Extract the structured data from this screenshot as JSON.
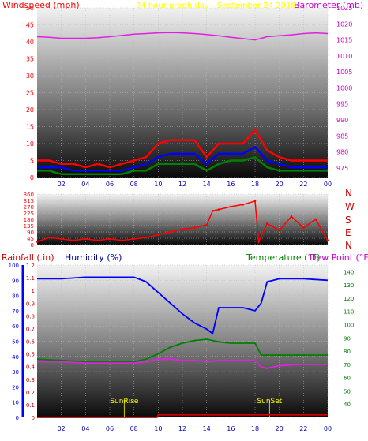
{
  "header": {
    "left_title": "Windspeed (mph)",
    "center_title": "24 hour graph day - September 24 2018",
    "right_title": "Barometer (mb)"
  },
  "wind_dir_labels": [
    "N",
    "W",
    "S",
    "E",
    "N"
  ],
  "bottom_header": {
    "rain": "Rainfall (.in)",
    "humidity": "Humidity (%)",
    "temperature": "Temperature (°F)",
    "dewpoint": "Dew Point (°F)"
  },
  "colors": {
    "red": "#ff0000",
    "blue": "#0000ff",
    "green": "#008000",
    "magenta": "#dd22dd",
    "yellow": "#ffff00",
    "olive": "#999900",
    "navy": "#000099",
    "red_dark": "#cc0000"
  },
  "chart_data": [
    {
      "type": "line",
      "series": [
        {
          "name": "Windspeed (mph)",
          "axis": "left",
          "color": "#ff0000",
          "x": [
            0,
            1,
            2,
            3,
            4,
            5,
            6,
            7,
            8,
            9,
            10,
            11,
            12,
            13,
            14,
            15,
            16,
            17,
            18,
            19,
            20,
            21,
            22,
            23,
            24
          ],
          "values": [
            5,
            5,
            4,
            4,
            3,
            4,
            3,
            4,
            5,
            6,
            10,
            11,
            11,
            11,
            6,
            10,
            10,
            10,
            14,
            8,
            6,
            5,
            5,
            5,
            5
          ]
        },
        {
          "name": "Wind gust (mph)",
          "axis": "left",
          "color": "#0000ff",
          "x": [
            0,
            1,
            2,
            3,
            4,
            5,
            6,
            7,
            8,
            9,
            10,
            11,
            12,
            13,
            14,
            15,
            16,
            17,
            18,
            19,
            20,
            21,
            22,
            23,
            24
          ],
          "values": [
            3,
            3,
            3,
            2,
            2,
            2,
            2,
            2,
            3,
            4,
            6,
            7,
            7,
            7,
            4,
            7,
            7,
            7,
            9,
            5,
            4,
            3,
            3,
            3,
            3
          ]
        },
        {
          "name": "Average wind (mph)",
          "axis": "left",
          "color": "#008000",
          "x": [
            0,
            1,
            2,
            3,
            4,
            5,
            6,
            7,
            8,
            9,
            10,
            11,
            12,
            13,
            14,
            15,
            16,
            17,
            18,
            19,
            20,
            21,
            22,
            23,
            24
          ],
          "values": [
            2,
            2,
            1,
            1,
            1,
            1,
            1,
            1,
            2,
            2,
            4,
            4,
            4,
            4,
            2,
            4,
            5,
            5,
            6,
            3,
            2,
            2,
            2,
            2,
            2
          ]
        },
        {
          "name": "Barometer (mb)",
          "axis": "right",
          "color": "#dd22dd",
          "x": [
            0,
            1,
            2,
            3,
            4,
            5,
            6,
            7,
            8,
            9,
            10,
            11,
            12,
            13,
            14,
            15,
            16,
            17,
            18,
            19,
            20,
            21,
            22,
            23,
            24
          ],
          "values": [
            1016,
            1015.8,
            1015.5,
            1015.5,
            1015.5,
            1015.7,
            1016,
            1016.4,
            1016.8,
            1017,
            1017.2,
            1017.3,
            1017.2,
            1017,
            1016.7,
            1016.3,
            1015.8,
            1015.4,
            1015,
            1016,
            1016.3,
            1016.6,
            1017,
            1017.2,
            1017
          ]
        }
      ],
      "title": "24 hour graph day - September 24 2018",
      "ylabel": "Windspeed (mph)",
      "ylabel_right": "Barometer (mb)",
      "ylim": [
        0,
        50
      ],
      "ylim_right": [
        972,
        1025
      ],
      "yticks": [
        "0",
        "5",
        "10",
        "15",
        "20",
        "25",
        "30",
        "35",
        "40",
        "45",
        "50"
      ],
      "yticks_right": [
        "975",
        "980",
        "985",
        "990",
        "995",
        "1000",
        "1005",
        "1010",
        "1015",
        "1020",
        "1025"
      ],
      "xlim": [
        0,
        24
      ],
      "xticks": [
        "02",
        "04",
        "06",
        "08",
        "10",
        "12",
        "14",
        "16",
        "18",
        "20",
        "22",
        "00"
      ],
      "grid": true
    },
    {
      "type": "scatter",
      "series": [
        {
          "name": "Wind direction",
          "color": "#ff0000",
          "x": [
            0,
            1,
            2,
            3,
            4,
            5,
            6,
            7,
            8,
            9,
            10,
            11,
            12,
            13,
            14,
            14.5,
            15,
            16,
            17,
            18,
            18.3,
            19,
            20,
            21,
            22,
            23,
            24
          ],
          "values": [
            20,
            50,
            40,
            30,
            40,
            30,
            40,
            30,
            40,
            50,
            70,
            90,
            110,
            120,
            140,
            240,
            250,
            270,
            285,
            310,
            20,
            150,
            100,
            200,
            120,
            180,
            30
          ]
        }
      ],
      "ylim": [
        0,
        360
      ],
      "yticks": [
        "0",
        "45",
        "90",
        "135",
        "180",
        "225",
        "270",
        "315",
        "360"
      ],
      "xlim": [
        0,
        24
      ],
      "grid": true
    },
    {
      "type": "line",
      "series": [
        {
          "name": "Humidity (%)",
          "axis": "humidity",
          "color": "#0000ff",
          "x": [
            0,
            2,
            4,
            6,
            8,
            9,
            10,
            11,
            12,
            13,
            14,
            14.5,
            15,
            16,
            17,
            18,
            18.5,
            19,
            20,
            22,
            24
          ],
          "values": [
            91,
            91,
            92,
            92,
            92,
            89,
            82,
            75,
            68,
            62,
            58,
            55,
            72,
            72,
            72,
            70,
            75,
            89,
            91,
            91,
            90
          ]
        },
        {
          "name": "Temperature (°F)",
          "axis": "temperature",
          "color": "#008000",
          "x": [
            0,
            2,
            4,
            6,
            8,
            9,
            10,
            11,
            12,
            13,
            14,
            15,
            16,
            17,
            18,
            18.5,
            19,
            20,
            22,
            24
          ],
          "values": [
            74,
            73,
            72,
            72,
            72,
            74,
            78,
            83,
            86,
            88,
            89,
            87,
            86,
            86,
            86,
            77,
            77,
            77,
            77,
            77
          ],
          "color_alt": "#008000"
        },
        {
          "name": "Dew Point (°F)",
          "axis": "temperature",
          "color": "#dd22dd",
          "x": [
            0,
            2,
            4,
            6,
            8,
            9,
            10,
            11,
            12,
            13,
            14,
            15,
            16,
            17,
            18,
            18.5,
            19,
            20,
            22,
            24
          ],
          "values": [
            72,
            72,
            71,
            71,
            71,
            72,
            74,
            74,
            73,
            73,
            72,
            73,
            73,
            73,
            73,
            68,
            67,
            69,
            70,
            70
          ]
        },
        {
          "name": "Rainfall (.in)",
          "axis": "rain",
          "color": "#cc0000",
          "x": [
            0,
            9.9,
            10,
            24
          ],
          "values": [
            0,
            0,
            0.02,
            0.02
          ]
        }
      ],
      "ylabel": "Humidity (%)",
      "ylabel_rain": "Rainfall (.in)",
      "ylabel_temperature": "Temperature (°F)",
      "ylim_humidity": [
        0,
        100
      ],
      "ylim_rain": [
        0,
        1.2
      ],
      "ylim_temperature": [
        30,
        145
      ],
      "yticks_humidity": [
        "0",
        "10",
        "20",
        "30",
        "40",
        "50",
        "60",
        "70",
        "80",
        "90",
        "100"
      ],
      "yticks_rain": [
        "0",
        "0.1",
        "0.2",
        "0.3",
        "0.4",
        "0.5",
        "0.6",
        "0.7",
        "0.8",
        "0.9",
        "1",
        "1.1",
        "1.2"
      ],
      "yticks_temperature": [
        "40",
        "50",
        "60",
        "70",
        "80",
        "90",
        "100",
        "110",
        "120",
        "130",
        "140"
      ],
      "xlim": [
        0,
        24
      ],
      "xticks": [
        "02",
        "04",
        "06",
        "08",
        "10",
        "12",
        "14",
        "16",
        "18",
        "20",
        "22",
        "00"
      ],
      "annotations": [
        {
          "label": "SunRise",
          "x": 7.2
        },
        {
          "label": "SunSet",
          "x": 19.2
        }
      ],
      "grid": true
    }
  ]
}
